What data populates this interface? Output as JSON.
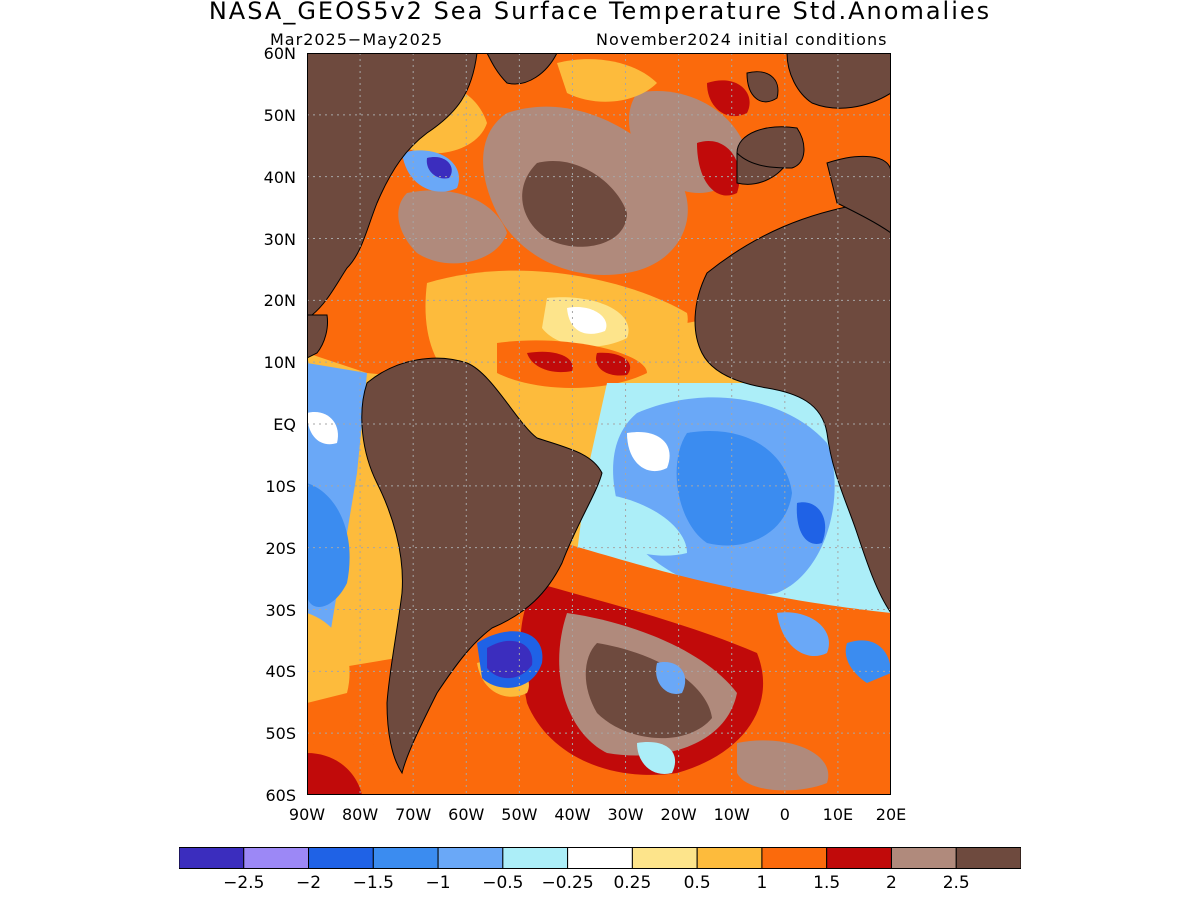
{
  "title": "NASA_GEOS5v2 Sea Surface Temperature Std.Anomalies",
  "subtitle_left": "Mar2025−May2025",
  "subtitle_right": "November2024 initial conditions",
  "lat_labels": [
    "60N",
    "50N",
    "40N",
    "30N",
    "20N",
    "10N",
    "EQ",
    "10S",
    "20S",
    "30S",
    "40S",
    "50S",
    "60S"
  ],
  "lon_labels": [
    "90W",
    "80W",
    "70W",
    "60W",
    "50W",
    "40W",
    "30W",
    "20W",
    "10W",
    "0",
    "10E",
    "20E"
  ],
  "colorbar": {
    "labels": [
      "−2.5",
      "−2",
      "−1.5",
      "−1",
      "−0.5",
      "−0.25",
      "0.25",
      "0.5",
      "1",
      "1.5",
      "2",
      "2.5"
    ],
    "colors": [
      "#3b2dbe",
      "#9c88f6",
      "#1f62e6",
      "#3b8cf0",
      "#6aa8f7",
      "#aceef8",
      "#ffffff",
      "#fde48b",
      "#fdbb3c",
      "#fb6a0c",
      "#c10a0a",
      "#b08a7c",
      "#6e4a3e"
    ]
  },
  "colors": {
    "land": "#6e4a3e",
    "coast": "#000000",
    "grid": "#a6a6a6"
  },
  "map_domain": {
    "lon": [
      -90,
      20
    ],
    "lat": [
      -60,
      60
    ]
  }
}
